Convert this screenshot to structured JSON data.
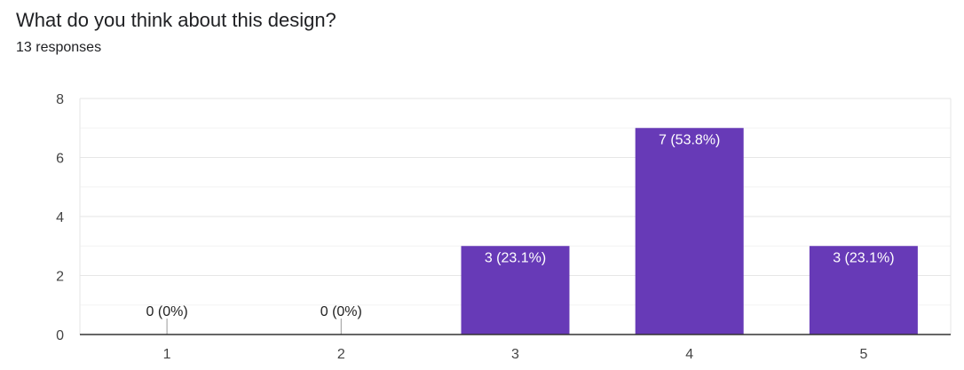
{
  "header": {
    "title": "What do you think about this design?",
    "subtitle": "13 responses"
  },
  "colors": {
    "bar": "#673ab7",
    "grid_major": "#e6e6e6",
    "grid_minor": "#f4f4f4",
    "axis": "#333333",
    "label_inside": "#ffffff",
    "label_outside": "#222222"
  },
  "chart_data": {
    "type": "bar",
    "categories": [
      "1",
      "2",
      "3",
      "4",
      "5"
    ],
    "values": [
      0,
      0,
      3,
      7,
      3
    ],
    "data_labels": [
      "0 (0%)",
      "0 (0%)",
      "3 (23.1%)",
      "7 (53.8%)",
      "3 (23.1%)"
    ],
    "ylim": [
      0,
      8
    ],
    "yticks": [
      "0",
      "2",
      "4",
      "6",
      "8"
    ],
    "grid": true,
    "legend": "none"
  }
}
